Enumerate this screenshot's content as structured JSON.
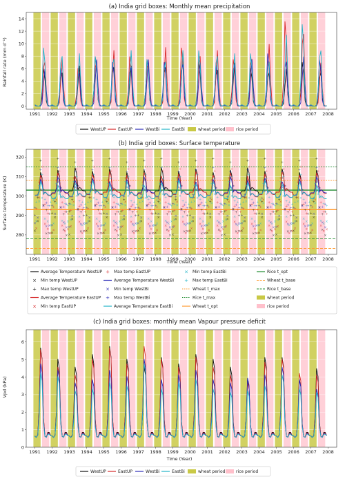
{
  "years": [
    "1991",
    "1992",
    "1993",
    "1994",
    "1995",
    "1996",
    "1997",
    "1998",
    "1999",
    "2000",
    "2001",
    "2002",
    "2003",
    "2004",
    "2005",
    "2006",
    "2007",
    "2008"
  ],
  "colors": {
    "WestUP": "#111111",
    "EastUP": "#d62728",
    "WestBi": "#2a2ab8",
    "EastBi": "#22b4c8",
    "wheat": "#c9c946",
    "rice": "#ffc0cb",
    "wheat_t": "#ff9a2e",
    "rice_t": "#1e8b2e"
  },
  "chart_data": [
    {
      "type": "line",
      "title": "(a) India grid boxes: Monthly mean precipitation",
      "xlabel": "Time (Year)",
      "ylabel": "Rainfall rate (mm d⁻¹)",
      "xlim": [
        1990.5,
        2008.5
      ],
      "ylim": [
        -0.5,
        15
      ],
      "yticks": [
        0,
        2,
        4,
        6,
        8,
        10,
        12,
        14
      ],
      "shading": {
        "wheat_months": "Nov-Apr",
        "rice_months": "Jun-Oct"
      },
      "series": [
        {
          "name": "WestUP",
          "annual_peak": [
            6.5,
            6.0,
            6.5,
            8.5,
            7.0,
            6.5,
            8.0,
            7.0,
            8.5,
            7.5,
            6.5,
            7.0,
            6.5,
            6.0,
            6.0,
            7.5,
            6.0
          ]
        },
        {
          "name": "EastUP",
          "annual_peak": [
            8.0,
            7.5,
            6.5,
            8.0,
            9.0,
            8.5,
            8.0,
            9.5,
            10.0,
            9.0,
            9.0,
            8.0,
            8.5,
            10.0,
            14.5,
            13.0,
            7.0
          ]
        },
        {
          "name": "WestBi",
          "annual_peak": [
            6.0,
            6.5,
            6.0,
            7.5,
            7.5,
            7.0,
            7.5,
            7.5,
            7.5,
            7.0,
            7.0,
            7.5,
            7.5,
            9.0,
            8.0,
            8.0,
            8.0
          ]
        },
        {
          "name": "EastBi",
          "annual_peak": [
            10.0,
            9.0,
            8.5,
            8.5,
            8.5,
            9.0,
            8.0,
            8.0,
            9.0,
            9.5,
            9.0,
            8.5,
            9.0,
            8.0,
            11.5,
            14.0,
            10.0
          ]
        }
      ],
      "legend": [
        "WestUP",
        "EastUP",
        "WestBi",
        "EastBi",
        "wheat period",
        "rice period"
      ]
    },
    {
      "type": "line",
      "title": "(b) India grid boxes: Surface temperature",
      "xlabel": "Time (Year)",
      "ylabel": "Surface temperature (K)",
      "xlim": [
        1990.5,
        2008.5
      ],
      "ylim": [
        270,
        324
      ],
      "yticks": [
        280,
        290,
        300,
        310,
        320
      ],
      "thresholds": {
        "wheat_t_max": 308,
        "wheat_t_opt": 293,
        "wheat_t_base": 273,
        "rice_t_max": 315,
        "rice_t_opt": 303,
        "rice_t_base": 278
      },
      "series": [
        {
          "name": "Average Temperature WestUP",
          "summer_peak": 314,
          "winter_min": 286
        },
        {
          "name": "Average Temperature EastUP",
          "summer_peak": 312,
          "winter_min": 287
        },
        {
          "name": "Average Temperature WestBi",
          "summer_peak": 309,
          "winter_min": 290
        },
        {
          "name": "Average Temperature EastBi",
          "summer_peak": 307,
          "winter_min": 291
        }
      ],
      "legend": [
        "Average Temperature WestUP",
        "Min temp WestUP",
        "Max temp WestUP",
        "Average Temperature EastUP",
        "Min temp EastUP",
        "Max temp EastUP",
        "Average Temperature WestBi",
        "Min temp WestBi",
        "Max temp WestBi",
        "Average Temperature EastBi",
        "Min temp EastBi",
        "Max temp EastBi",
        "Wheat t_max",
        "Rice t_max",
        "Wheat t_opt",
        "Rice t_opt",
        "Wheat t_base",
        "Rice t_base",
        "wheat period",
        "rice period"
      ]
    },
    {
      "type": "line",
      "title": "(c) India grid boxes: monthly mean Vapour pressure deficit",
      "xlabel": "Time (Year)",
      "ylabel": "Vpd (kPa)",
      "xlim": [
        1990.5,
        2008.5
      ],
      "ylim": [
        0,
        6.7
      ],
      "yticks": [
        0,
        1,
        2,
        3,
        4,
        5,
        6
      ],
      "series": [
        {
          "name": "WestUP",
          "annual_peak": [
            6.2,
            5.5,
            5.0,
            5.8,
            6.3,
            5.5,
            5.0,
            5.6,
            5.2,
            5.8,
            5.5,
            5.0,
            4.2,
            5.6,
            5.6,
            4.2,
            4.9
          ]
        },
        {
          "name": "EastUP",
          "annual_peak": [
            6.1,
            5.0,
            4.5,
            5.5,
            6.2,
            5.2,
            6.3,
            5.5,
            5.0,
            5.6,
            5.0,
            4.5,
            4.0,
            5.3,
            5.5,
            4.6,
            4.5
          ]
        },
        {
          "name": "WestBi",
          "annual_peak": [
            5.2,
            4.8,
            4.0,
            4.2,
            4.8,
            4.4,
            5.5,
            4.2,
            4.5,
            4.8,
            4.2,
            4.0,
            4.3,
            4.5,
            5.0,
            4.2,
            3.6
          ]
        },
        {
          "name": "EastBi",
          "annual_peak": [
            4.6,
            4.4,
            3.5,
            3.6,
            4.0,
            3.8,
            5.2,
            3.6,
            4.0,
            4.2,
            3.6,
            3.4,
            3.5,
            3.8,
            4.5,
            3.6,
            3.4
          ]
        }
      ],
      "legend": [
        "WestUP",
        "EastUP",
        "WestBi",
        "EastBi",
        "wheat period",
        "rice period"
      ]
    }
  ]
}
